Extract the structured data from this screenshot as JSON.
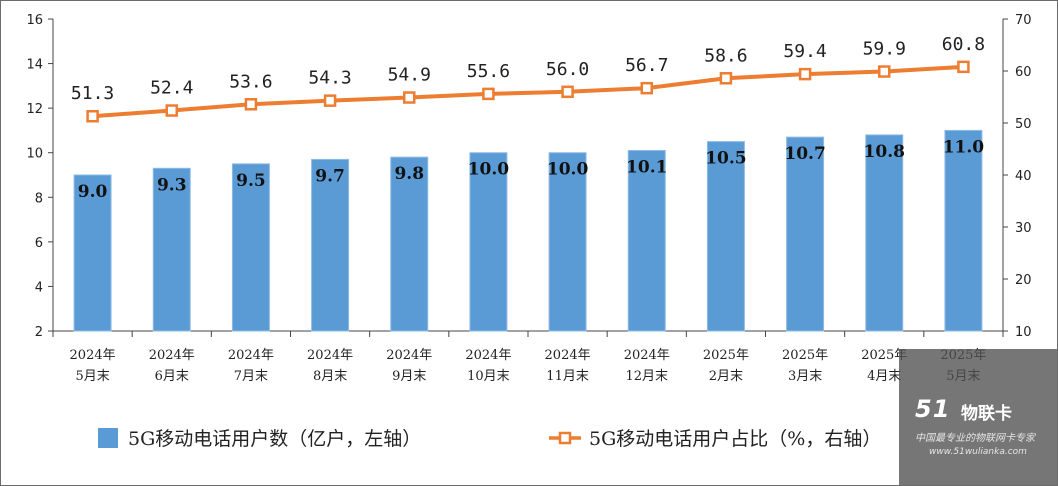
{
  "chart_data": {
    "type": "bar",
    "categories": [
      "2024年\n5月末",
      "2024年\n6月末",
      "2024年\n7月末",
      "2024年\n8月末",
      "2024年\n9月末",
      "2024年\n10月末",
      "2024年\n11月末",
      "2024年\n12月末",
      "2025年\n2月末",
      "2025年\n3月末",
      "2025年\n4月末",
      "2025年\n5月末"
    ],
    "series": [
      {
        "name": "5G移动电话用户数（亿户，左轴）",
        "type": "bar",
        "axis": "left",
        "color": "#5b9bd5",
        "values": [
          9.0,
          9.3,
          9.5,
          9.7,
          9.8,
          10.0,
          10.0,
          10.1,
          10.5,
          10.7,
          10.8,
          11.0
        ],
        "labels": [
          "9.0",
          "9.3",
          "9.5",
          "9.7",
          "9.8",
          "10.0",
          "10.0",
          "10.1",
          "10.5",
          "10.7",
          "10.8",
          "11.0"
        ]
      },
      {
        "name": "5G移动电话用户占比（%，右轴）",
        "type": "line",
        "axis": "right",
        "color": "#ed7d31",
        "values": [
          51.3,
          52.4,
          53.6,
          54.3,
          54.9,
          55.6,
          56.0,
          56.7,
          58.6,
          59.4,
          59.9,
          60.8
        ],
        "labels": [
          "51.3",
          "52.4",
          "53.6",
          "54.3",
          "54.9",
          "55.6",
          "56.0",
          "56.7",
          "58.6",
          "59.4",
          "59.9",
          "60.8"
        ]
      }
    ],
    "y_left": {
      "min": 2,
      "max": 16,
      "ticks": [
        "2",
        "4",
        "6",
        "8",
        "10",
        "12",
        "14",
        "16"
      ]
    },
    "y_right": {
      "min": 10,
      "max": 70,
      "ticks": [
        "10",
        "20",
        "30",
        "40",
        "50",
        "60",
        "70"
      ]
    },
    "grid": false,
    "legend_position": "bottom"
  },
  "watermark": {
    "logo": "51",
    "brand": "物联卡",
    "slogan": "中国最专业的物联网卡专家",
    "url": "www.51wulianka.com"
  }
}
